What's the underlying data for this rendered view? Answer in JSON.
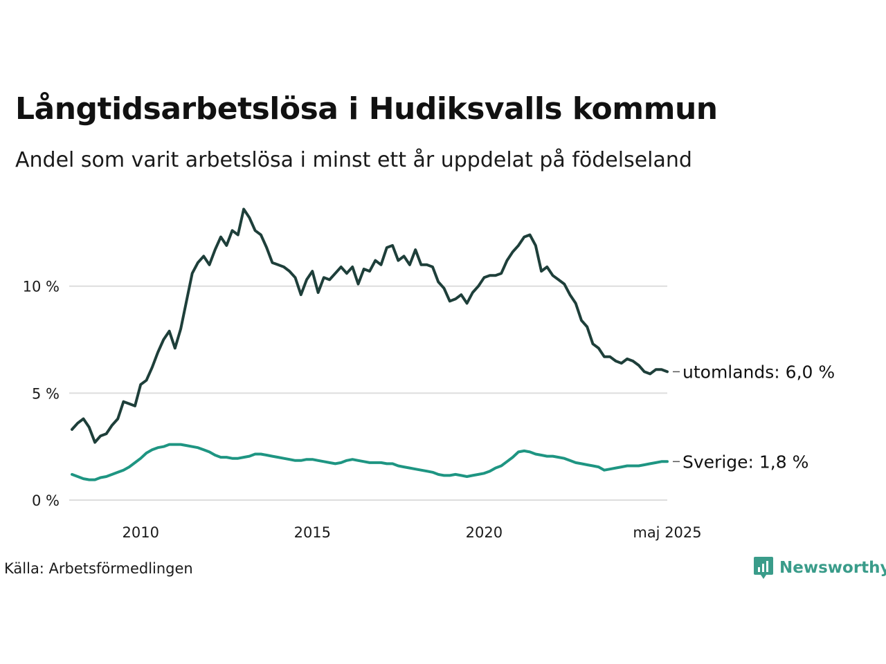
{
  "title": "Långtidsarbetslösa i Hudiksvalls kommun",
  "subtitle": "Andel som varit arbetslösa i minst ett år uppdelat på födelseland",
  "source": "Källa: Arbetsförmedlingen",
  "brand": "Newsworthy",
  "colors": {
    "utomlands": "#1e3f3a",
    "sverige": "#1e9582",
    "grid": "#dddddd",
    "brand": "#3a9c8a"
  },
  "chart_data": {
    "type": "line",
    "title": "Långtidsarbetslösa i Hudiksvalls kommun",
    "subtitle": "Andel som varit arbetslösa i minst ett år uppdelat på födelseland",
    "xlabel": "",
    "ylabel": "",
    "xlim": [
      "2008-01",
      "2025-05"
    ],
    "ylim": [
      0,
      14
    ],
    "grid": true,
    "y_ticks": [
      {
        "value": 0,
        "label": "0 %"
      },
      {
        "value": 5,
        "label": "5 %"
      },
      {
        "value": 10,
        "label": "10 %"
      }
    ],
    "x_ticks": [
      {
        "value": "2010-01",
        "label": "2010"
      },
      {
        "value": "2015-01",
        "label": "2015"
      },
      {
        "value": "2020-01",
        "label": "2020"
      },
      {
        "value": "2025-05",
        "label": "maj 2025"
      }
    ],
    "series": [
      {
        "key": "utomlands",
        "name": "utomlands",
        "end_label": "utomlands: 6,0 %",
        "points": [
          [
            "2008-01",
            3.3
          ],
          [
            "2008-03",
            3.6
          ],
          [
            "2008-05",
            3.8
          ],
          [
            "2008-07",
            3.4
          ],
          [
            "2008-09",
            2.7
          ],
          [
            "2008-11",
            3.0
          ],
          [
            "2009-01",
            3.1
          ],
          [
            "2009-03",
            3.5
          ],
          [
            "2009-05",
            3.8
          ],
          [
            "2009-07",
            4.6
          ],
          [
            "2009-09",
            4.5
          ],
          [
            "2009-11",
            4.4
          ],
          [
            "2010-01",
            5.4
          ],
          [
            "2010-03",
            5.6
          ],
          [
            "2010-05",
            6.2
          ],
          [
            "2010-07",
            6.9
          ],
          [
            "2010-09",
            7.5
          ],
          [
            "2010-11",
            7.9
          ],
          [
            "2011-01",
            7.1
          ],
          [
            "2011-03",
            8.0
          ],
          [
            "2011-05",
            9.3
          ],
          [
            "2011-07",
            10.6
          ],
          [
            "2011-09",
            11.1
          ],
          [
            "2011-11",
            11.4
          ],
          [
            "2012-01",
            11.0
          ],
          [
            "2012-03",
            11.7
          ],
          [
            "2012-05",
            12.3
          ],
          [
            "2012-07",
            11.9
          ],
          [
            "2012-09",
            12.6
          ],
          [
            "2012-11",
            12.4
          ],
          [
            "2013-01",
            13.6
          ],
          [
            "2013-03",
            13.2
          ],
          [
            "2013-05",
            12.6
          ],
          [
            "2013-07",
            12.4
          ],
          [
            "2013-09",
            11.8
          ],
          [
            "2013-11",
            11.1
          ],
          [
            "2014-01",
            11.0
          ],
          [
            "2014-03",
            10.9
          ],
          [
            "2014-05",
            10.7
          ],
          [
            "2014-07",
            10.4
          ],
          [
            "2014-09",
            9.6
          ],
          [
            "2014-11",
            10.3
          ],
          [
            "2015-01",
            10.7
          ],
          [
            "2015-03",
            9.7
          ],
          [
            "2015-05",
            10.4
          ],
          [
            "2015-07",
            10.3
          ],
          [
            "2015-09",
            10.6
          ],
          [
            "2015-11",
            10.9
          ],
          [
            "2016-01",
            10.6
          ],
          [
            "2016-03",
            10.9
          ],
          [
            "2016-05",
            10.1
          ],
          [
            "2016-07",
            10.8
          ],
          [
            "2016-09",
            10.7
          ],
          [
            "2016-11",
            11.2
          ],
          [
            "2017-01",
            11.0
          ],
          [
            "2017-03",
            11.8
          ],
          [
            "2017-05",
            11.9
          ],
          [
            "2017-07",
            11.2
          ],
          [
            "2017-09",
            11.4
          ],
          [
            "2017-11",
            11.0
          ],
          [
            "2018-01",
            11.7
          ],
          [
            "2018-03",
            11.0
          ],
          [
            "2018-05",
            11.0
          ],
          [
            "2018-07",
            10.9
          ],
          [
            "2018-09",
            10.2
          ],
          [
            "2018-11",
            9.9
          ],
          [
            "2019-01",
            9.3
          ],
          [
            "2019-03",
            9.4
          ],
          [
            "2019-05",
            9.6
          ],
          [
            "2019-07",
            9.2
          ],
          [
            "2019-09",
            9.7
          ],
          [
            "2019-11",
            10.0
          ],
          [
            "2020-01",
            10.4
          ],
          [
            "2020-03",
            10.5
          ],
          [
            "2020-05",
            10.5
          ],
          [
            "2020-07",
            10.6
          ],
          [
            "2020-09",
            11.2
          ],
          [
            "2020-11",
            11.6
          ],
          [
            "2021-01",
            11.9
          ],
          [
            "2021-03",
            12.3
          ],
          [
            "2021-05",
            12.4
          ],
          [
            "2021-07",
            11.9
          ],
          [
            "2021-09",
            10.7
          ],
          [
            "2021-11",
            10.9
          ],
          [
            "2022-01",
            10.5
          ],
          [
            "2022-03",
            10.3
          ],
          [
            "2022-05",
            10.1
          ],
          [
            "2022-07",
            9.6
          ],
          [
            "2022-09",
            9.2
          ],
          [
            "2022-11",
            8.4
          ],
          [
            "2023-01",
            8.1
          ],
          [
            "2023-03",
            7.3
          ],
          [
            "2023-05",
            7.1
          ],
          [
            "2023-07",
            6.7
          ],
          [
            "2023-09",
            6.7
          ],
          [
            "2023-11",
            6.5
          ],
          [
            "2024-01",
            6.4
          ],
          [
            "2024-03",
            6.6
          ],
          [
            "2024-05",
            6.5
          ],
          [
            "2024-07",
            6.3
          ],
          [
            "2024-09",
            6.0
          ],
          [
            "2024-11",
            5.9
          ],
          [
            "2025-01",
            6.1
          ],
          [
            "2025-03",
            6.1
          ],
          [
            "2025-05",
            6.0
          ]
        ]
      },
      {
        "key": "sverige",
        "name": "Sverige",
        "end_label": "Sverige: 1,8 %",
        "points": [
          [
            "2008-01",
            1.2
          ],
          [
            "2008-03",
            1.1
          ],
          [
            "2008-05",
            1.0
          ],
          [
            "2008-07",
            0.95
          ],
          [
            "2008-09",
            0.95
          ],
          [
            "2008-11",
            1.05
          ],
          [
            "2009-01",
            1.1
          ],
          [
            "2009-03",
            1.2
          ],
          [
            "2009-05",
            1.3
          ],
          [
            "2009-07",
            1.4
          ],
          [
            "2009-09",
            1.55
          ],
          [
            "2009-11",
            1.75
          ],
          [
            "2010-01",
            1.95
          ],
          [
            "2010-03",
            2.2
          ],
          [
            "2010-05",
            2.35
          ],
          [
            "2010-07",
            2.45
          ],
          [
            "2010-09",
            2.5
          ],
          [
            "2010-11",
            2.6
          ],
          [
            "2011-01",
            2.6
          ],
          [
            "2011-03",
            2.6
          ],
          [
            "2011-05",
            2.55
          ],
          [
            "2011-07",
            2.5
          ],
          [
            "2011-09",
            2.45
          ],
          [
            "2011-11",
            2.35
          ],
          [
            "2012-01",
            2.25
          ],
          [
            "2012-03",
            2.1
          ],
          [
            "2012-05",
            2.0
          ],
          [
            "2012-07",
            2.0
          ],
          [
            "2012-09",
            1.95
          ],
          [
            "2012-11",
            1.95
          ],
          [
            "2013-01",
            2.0
          ],
          [
            "2013-03",
            2.05
          ],
          [
            "2013-05",
            2.15
          ],
          [
            "2013-07",
            2.15
          ],
          [
            "2013-09",
            2.1
          ],
          [
            "2013-11",
            2.05
          ],
          [
            "2014-01",
            2.0
          ],
          [
            "2014-03",
            1.95
          ],
          [
            "2014-05",
            1.9
          ],
          [
            "2014-07",
            1.85
          ],
          [
            "2014-09",
            1.85
          ],
          [
            "2014-11",
            1.9
          ],
          [
            "2015-01",
            1.9
          ],
          [
            "2015-03",
            1.85
          ],
          [
            "2015-05",
            1.8
          ],
          [
            "2015-07",
            1.75
          ],
          [
            "2015-09",
            1.7
          ],
          [
            "2015-11",
            1.75
          ],
          [
            "2016-01",
            1.85
          ],
          [
            "2016-03",
            1.9
          ],
          [
            "2016-05",
            1.85
          ],
          [
            "2016-07",
            1.8
          ],
          [
            "2016-09",
            1.75
          ],
          [
            "2016-11",
            1.75
          ],
          [
            "2017-01",
            1.75
          ],
          [
            "2017-03",
            1.7
          ],
          [
            "2017-05",
            1.7
          ],
          [
            "2017-07",
            1.6
          ],
          [
            "2017-09",
            1.55
          ],
          [
            "2017-11",
            1.5
          ],
          [
            "2018-01",
            1.45
          ],
          [
            "2018-03",
            1.4
          ],
          [
            "2018-05",
            1.35
          ],
          [
            "2018-07",
            1.3
          ],
          [
            "2018-09",
            1.2
          ],
          [
            "2018-11",
            1.15
          ],
          [
            "2019-01",
            1.15
          ],
          [
            "2019-03",
            1.2
          ],
          [
            "2019-05",
            1.15
          ],
          [
            "2019-07",
            1.1
          ],
          [
            "2019-09",
            1.15
          ],
          [
            "2019-11",
            1.2
          ],
          [
            "2020-01",
            1.25
          ],
          [
            "2020-03",
            1.35
          ],
          [
            "2020-05",
            1.5
          ],
          [
            "2020-07",
            1.6
          ],
          [
            "2020-09",
            1.8
          ],
          [
            "2020-11",
            2.0
          ],
          [
            "2021-01",
            2.25
          ],
          [
            "2021-03",
            2.3
          ],
          [
            "2021-05",
            2.25
          ],
          [
            "2021-07",
            2.15
          ],
          [
            "2021-09",
            2.1
          ],
          [
            "2021-11",
            2.05
          ],
          [
            "2022-01",
            2.05
          ],
          [
            "2022-03",
            2.0
          ],
          [
            "2022-05",
            1.95
          ],
          [
            "2022-07",
            1.85
          ],
          [
            "2022-09",
            1.75
          ],
          [
            "2022-11",
            1.7
          ],
          [
            "2023-01",
            1.65
          ],
          [
            "2023-03",
            1.6
          ],
          [
            "2023-05",
            1.55
          ],
          [
            "2023-07",
            1.4
          ],
          [
            "2023-09",
            1.45
          ],
          [
            "2023-11",
            1.5
          ],
          [
            "2024-01",
            1.55
          ],
          [
            "2024-03",
            1.6
          ],
          [
            "2024-05",
            1.6
          ],
          [
            "2024-07",
            1.6
          ],
          [
            "2024-09",
            1.65
          ],
          [
            "2024-11",
            1.7
          ],
          [
            "2025-01",
            1.75
          ],
          [
            "2025-03",
            1.8
          ],
          [
            "2025-05",
            1.8
          ]
        ]
      }
    ]
  }
}
